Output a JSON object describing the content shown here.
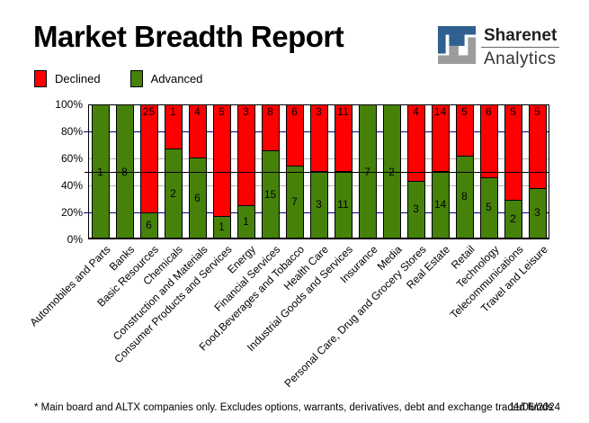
{
  "header": {
    "title": "Market Breadth Report",
    "logo": {
      "line1": "Sharenet",
      "line2": "Analytics",
      "icon_blue": "#2f6090",
      "icon_gray": "#9c9c9c"
    }
  },
  "footer": {
    "note": "* Main board and ALTX companies only. Excludes options, warrants, derivatives, debt and exchange traded funds",
    "date": "11/06/2024"
  },
  "chart_data": {
    "type": "bar",
    "stacked": true,
    "normalized": "percent",
    "title": "Market Breadth Report",
    "xlabel": "",
    "ylabel": "",
    "legend_position": "top-left",
    "categories": [
      "Automobiles and Parts",
      "Banks",
      "Basic Resources",
      "Chemicals",
      "Construction and Materials",
      "Consumer Products and Services",
      "Energy",
      "Financial Services",
      "Food,Beverages and Tobacco",
      "Health Care",
      "Industrial Goods and Services",
      "Insurance",
      "Media",
      "Personal Care, Drug and Grocery Stores",
      "Real Estate",
      "Retail",
      "Technology",
      "Telecommunications",
      "Travel and Leisure"
    ],
    "series": [
      {
        "name": "Declined",
        "color": "#ff0000",
        "values": [
          0,
          0,
          25,
          1,
          4,
          5,
          3,
          8,
          6,
          3,
          11,
          0,
          0,
          4,
          14,
          5,
          6,
          5,
          5
        ]
      },
      {
        "name": "Advanced",
        "color": "#46820a",
        "values": [
          1,
          8,
          6,
          2,
          6,
          1,
          1,
          15,
          7,
          3,
          11,
          7,
          2,
          3,
          14,
          8,
          5,
          2,
          3
        ]
      }
    ],
    "y_axis": {
      "ticks": [
        "100%",
        "80%",
        "60%",
        "40%",
        "20%",
        "0%"
      ],
      "range": [
        0,
        100
      ]
    },
    "gridlines": [
      {
        "level": 80,
        "color": "#000080",
        "tick": true
      },
      {
        "level": 60,
        "color": "#b4b4b4",
        "tick": false
      },
      {
        "level": 40,
        "color": "#b4b4b4",
        "tick": false
      },
      {
        "level": 20,
        "color": "#000080",
        "tick": true
      }
    ],
    "midline_level": 50,
    "midline_color": "#000000"
  }
}
